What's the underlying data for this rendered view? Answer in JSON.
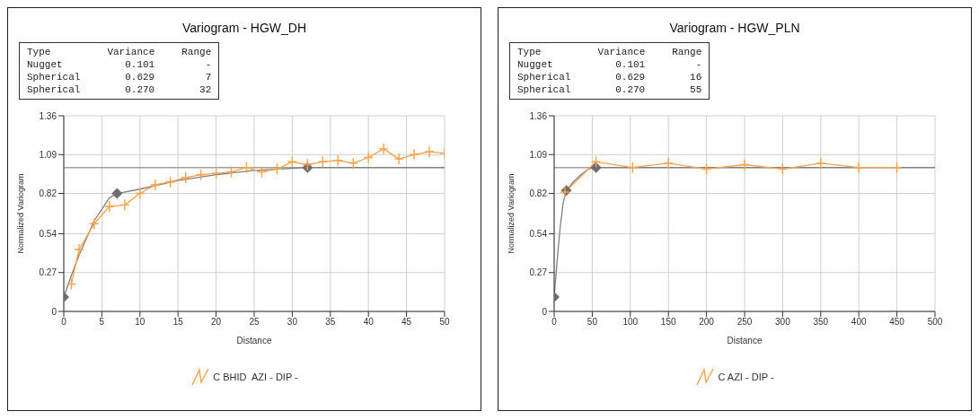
{
  "chart_data": [
    {
      "type": "line",
      "title": "Variogram - HGW_DH",
      "xlabel": "Distance",
      "ylabel": "Normalized Variogram",
      "annotations": [
        "Type  Variance  Range",
        "Nugget  0.101  -",
        "Spherical  0.629  7",
        "Spherical  0.270  32"
      ],
      "xlim": [
        0,
        50
      ],
      "xticks": [
        0,
        5,
        10,
        15,
        20,
        25,
        30,
        35,
        40,
        45,
        50
      ],
      "ylim": [
        0,
        1.36
      ],
      "yticks": [
        0,
        0.27,
        0.54,
        0.82,
        1.09,
        1.36
      ],
      "grid": true,
      "legend": "bottom",
      "ref_lines": [
        {
          "axis": "y",
          "value": 1.0,
          "color": "#a0a0a0"
        }
      ],
      "series": [
        {
          "name": "C BHID  AZI - DIP -",
          "color": "#f9a34a",
          "marker": "cross",
          "x": [
            1,
            2,
            4,
            6,
            8,
            10,
            12,
            14,
            16,
            18,
            20,
            22,
            24,
            26,
            28,
            30,
            32,
            34,
            36,
            38,
            40,
            42,
            44,
            46,
            48,
            50
          ],
          "values": [
            0.19,
            0.43,
            0.61,
            0.73,
            0.74,
            0.82,
            0.88,
            0.9,
            0.93,
            0.95,
            0.96,
            0.97,
            1.0,
            0.97,
            0.99,
            1.04,
            1.02,
            1.04,
            1.05,
            1.03,
            1.07,
            1.13,
            1.06,
            1.09,
            1.11,
            1.1
          ]
        },
        {
          "type": "line",
          "color": "#808080",
          "marker": "none",
          "x": [
            0,
            1,
            2,
            4,
            6,
            7,
            10,
            15,
            20,
            25,
            32,
            50
          ],
          "values": [
            0.1,
            0.25,
            0.39,
            0.63,
            0.79,
            0.82,
            0.85,
            0.91,
            0.95,
            0.98,
            1.0,
            1.0
          ]
        },
        {
          "type": "scatter",
          "color": "#6e6e6e",
          "marker": "diamond",
          "x": [
            0,
            7,
            32
          ],
          "values": [
            0.1,
            0.82,
            1.0
          ]
        }
      ]
    },
    {
      "type": "line",
      "title": "Variogram - HGW_PLN",
      "xlabel": "Distance",
      "ylabel": "Normalized Variogram",
      "annotations": [
        "Type  Variance  Range",
        "Nugget  0.101  -",
        "Spherical  0.629  16",
        "Spherical  0.270  55"
      ],
      "xlim": [
        0,
        500
      ],
      "xticks": [
        0,
        50,
        100,
        150,
        200,
        250,
        300,
        350,
        400,
        450,
        500
      ],
      "ylim": [
        0,
        1.36
      ],
      "yticks": [
        0,
        0.27,
        0.54,
        0.82,
        1.09,
        1.36
      ],
      "grid": true,
      "legend": "bottom",
      "ref_lines": [
        {
          "axis": "y",
          "value": 1.0,
          "color": "#a0a0a0"
        }
      ],
      "series": [
        {
          "name": "C AZI - DIP -",
          "color": "#f9a34a",
          "marker": "cross",
          "x": [
            14,
            55,
            103,
            150,
            200,
            250,
            300,
            350,
            400,
            450
          ],
          "values": [
            0.83,
            1.04,
            1.0,
            1.03,
            0.99,
            1.02,
            0.99,
            1.03,
            1.0,
            1.0
          ]
        },
        {
          "type": "line",
          "color": "#808080",
          "marker": "none",
          "x": [
            0,
            2,
            5,
            8,
            12,
            16,
            25,
            35,
            45,
            55,
            500
          ],
          "values": [
            0.1,
            0.23,
            0.42,
            0.59,
            0.76,
            0.84,
            0.9,
            0.95,
            0.99,
            1.0,
            1.0
          ]
        },
        {
          "type": "scatter",
          "color": "#6e6e6e",
          "marker": "diamond",
          "x": [
            0,
            16,
            55
          ],
          "values": [
            0.1,
            0.84,
            1.0
          ]
        }
      ]
    }
  ]
}
